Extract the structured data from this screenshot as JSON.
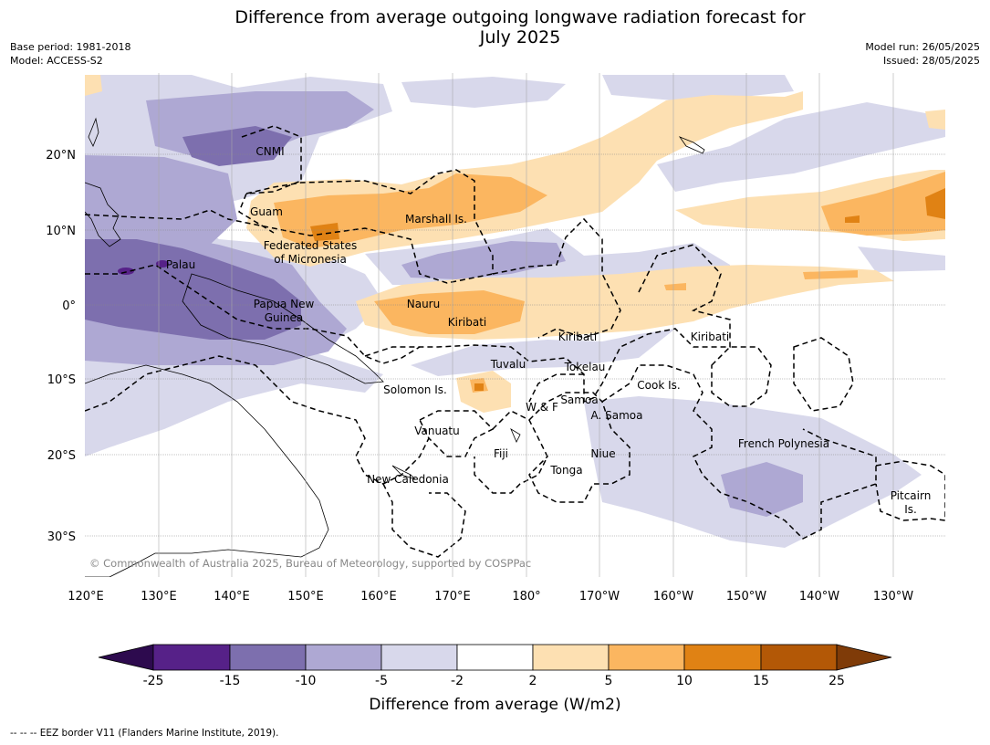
{
  "title_line1": "Difference from average outgoing longwave radiation forecast for",
  "title_line2": "July 2025",
  "base_period": "Base period: 1981-2018",
  "model": "Model: ACCESS-S2",
  "model_run": "Model run: 26/05/2025",
  "issued": "Issued: 28/05/2025",
  "copyright": "© Commonwealth of Australia 2025, Bureau of Meteorology, supported by COSPPac",
  "lat_labels": [
    "20°N",
    "10°N",
    "0°",
    "10°S",
    "20°S",
    "30°S"
  ],
  "lon_labels": [
    "120°E",
    "130°E",
    "140°E",
    "150°E",
    "160°E",
    "170°E",
    "180°",
    "170°W",
    "160°W",
    "150°W",
    "140°W",
    "130°W"
  ],
  "region_labels": {
    "cnmi": "CNMI",
    "guam": "Guam",
    "marshall": "Marshall Is.",
    "fsm1": "Federated States",
    "fsm2": "of Micronesia",
    "palau": "Palau",
    "png1": "Papua New",
    "png2": "Guinea",
    "nauru": "Nauru",
    "kiribati_w": "Kiribati",
    "kiribati_c": "Kiribati",
    "kiribati_e": "Kiribati",
    "tuvalu": "Tuvalu",
    "tokelau": "Tokelau",
    "solomon": "Solomon Is.",
    "cook": "Cook Is.",
    "wf": "W & F",
    "samoa": "Samoa",
    "asamoa": "A. Samoa",
    "vanuatu": "Vanuatu",
    "fiji": "Fiji",
    "niue": "Niue",
    "tonga": "Tonga",
    "french_polynesia": "French Polynesia",
    "new_caledonia": "New Caledonia",
    "pitcairn1": "Pitcairn",
    "pitcairn2": "Is."
  },
  "colorbar": {
    "ticks": [
      "-25",
      "-15",
      "-10",
      "-5",
      "-2",
      "2",
      "5",
      "10",
      "15",
      "25"
    ],
    "colors": [
      "#2d0a4e",
      "#562188",
      "#7d6fae",
      "#aea8d3",
      "#d8d8eb",
      "#ffffff",
      "#fde0b2",
      "#fbb660",
      "#e08214",
      "#b35806",
      "#7f3b08"
    ],
    "label": "Difference from average (W/m2)"
  },
  "footer": "--  --  -- EEZ border V11 (Flanders Marine Institute, 2019)."
}
